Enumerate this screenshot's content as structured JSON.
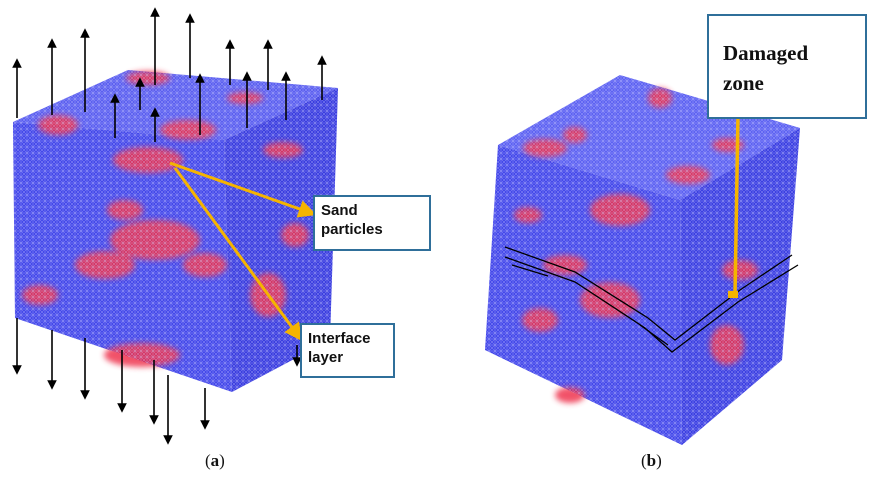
{
  "panels": [
    {
      "id": "a",
      "caption_open": "(",
      "caption_letter": "a",
      "caption_close": ")",
      "callouts": [
        {
          "lines": [
            "Sand",
            "particles"
          ]
        },
        {
          "lines": [
            "Interface",
            "layer"
          ]
        }
      ]
    },
    {
      "id": "b",
      "caption_open": "(",
      "caption_letter": "b",
      "caption_close": ")",
      "callouts": [
        {
          "lines": [
            "Damaged",
            "zone"
          ]
        }
      ]
    }
  ],
  "colors": {
    "matrix": "#3b3de8",
    "particles": "#e8334a",
    "mesh": "#c8c8ff",
    "arrow": "#000000",
    "leader": "#f5b400",
    "callout_border": "#2f6f9a"
  }
}
